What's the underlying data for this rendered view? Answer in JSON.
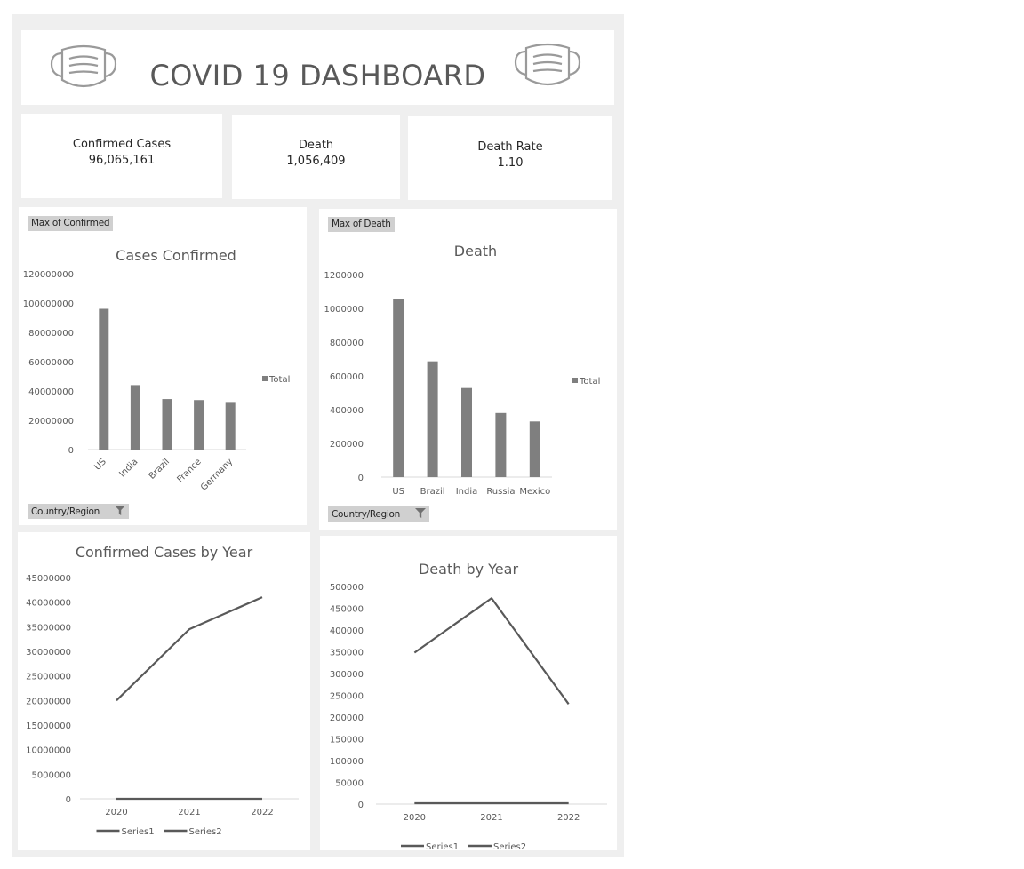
{
  "dashboard": {
    "title": "COVID 19 DASHBOARD",
    "left_icon": "face-mask-icon",
    "right_icon": "face-mask-icon"
  },
  "kpis": [
    {
      "label": "Confirmed Cases",
      "value": "96,065,161"
    },
    {
      "label": "Death",
      "value": "1,056,409"
    },
    {
      "label": "Death Rate",
      "value": "1.10"
    }
  ],
  "pivot_buttons": {
    "cases_value_field": "Max of Confirmed",
    "cases_axis_field": "Country/Region",
    "death_value_field": "Max of Death",
    "death_axis_field": "Country/Region"
  },
  "colors": {
    "bar": "#7f7f7f",
    "line": "#595959",
    "panel_bg": "#ffffff",
    "dashboard_bg": "#efefef"
  },
  "chart_data": [
    {
      "id": "cases",
      "type": "bar",
      "title": "Cases Confirmed",
      "categories": [
        "US",
        "India",
        "Brazil",
        "France",
        "Germany"
      ],
      "series": [
        {
          "name": "Total",
          "values": [
            96065161,
            44000000,
            34500000,
            33800000,
            32500000
          ]
        }
      ],
      "ylim": [
        0,
        120000000
      ],
      "yticks": [
        "0",
        "20000000",
        "40000000",
        "60000000",
        "80000000",
        "100000000",
        "120000000"
      ],
      "legend": "right",
      "grid": false
    },
    {
      "id": "death",
      "type": "bar",
      "title": "Death",
      "categories": [
        "US",
        "Brazil",
        "India",
        "Russia",
        "Mexico"
      ],
      "series": [
        {
          "name": "Total",
          "values": [
            1056409,
            686000,
            528000,
            380000,
            330000
          ]
        }
      ],
      "ylim": [
        0,
        1200000
      ],
      "yticks": [
        "0",
        "200000",
        "400000",
        "600000",
        "800000",
        "1000000",
        "1200000"
      ],
      "legend": "right",
      "grid": false
    },
    {
      "id": "cases_year",
      "type": "line",
      "title": "Confirmed Cases by Year",
      "categories": [
        "2020",
        "2021",
        "2022"
      ],
      "series": [
        {
          "name": "Series1",
          "values": [
            20000000,
            34500000,
            41000000
          ]
        },
        {
          "name": "Series2",
          "values": [
            2020,
            2021,
            2022
          ]
        }
      ],
      "ylim": [
        0,
        45000000
      ],
      "yticks": [
        "0",
        "5000000",
        "10000000",
        "15000000",
        "20000000",
        "25000000",
        "30000000",
        "35000000",
        "40000000",
        "45000000"
      ],
      "legend": "bottom",
      "grid": false
    },
    {
      "id": "death_year",
      "type": "line",
      "title": "Death by Year",
      "categories": [
        "2020",
        "2021",
        "2022"
      ],
      "series": [
        {
          "name": "Series1",
          "values": [
            348000,
            473000,
            230000
          ]
        },
        {
          "name": "Series2",
          "values": [
            2020,
            2021,
            2022
          ]
        }
      ],
      "ylim": [
        0,
        500000
      ],
      "yticks": [
        "0",
        "50000",
        "100000",
        "150000",
        "200000",
        "250000",
        "300000",
        "350000",
        "400000",
        "450000",
        "500000"
      ],
      "legend": "bottom",
      "grid": false
    }
  ]
}
